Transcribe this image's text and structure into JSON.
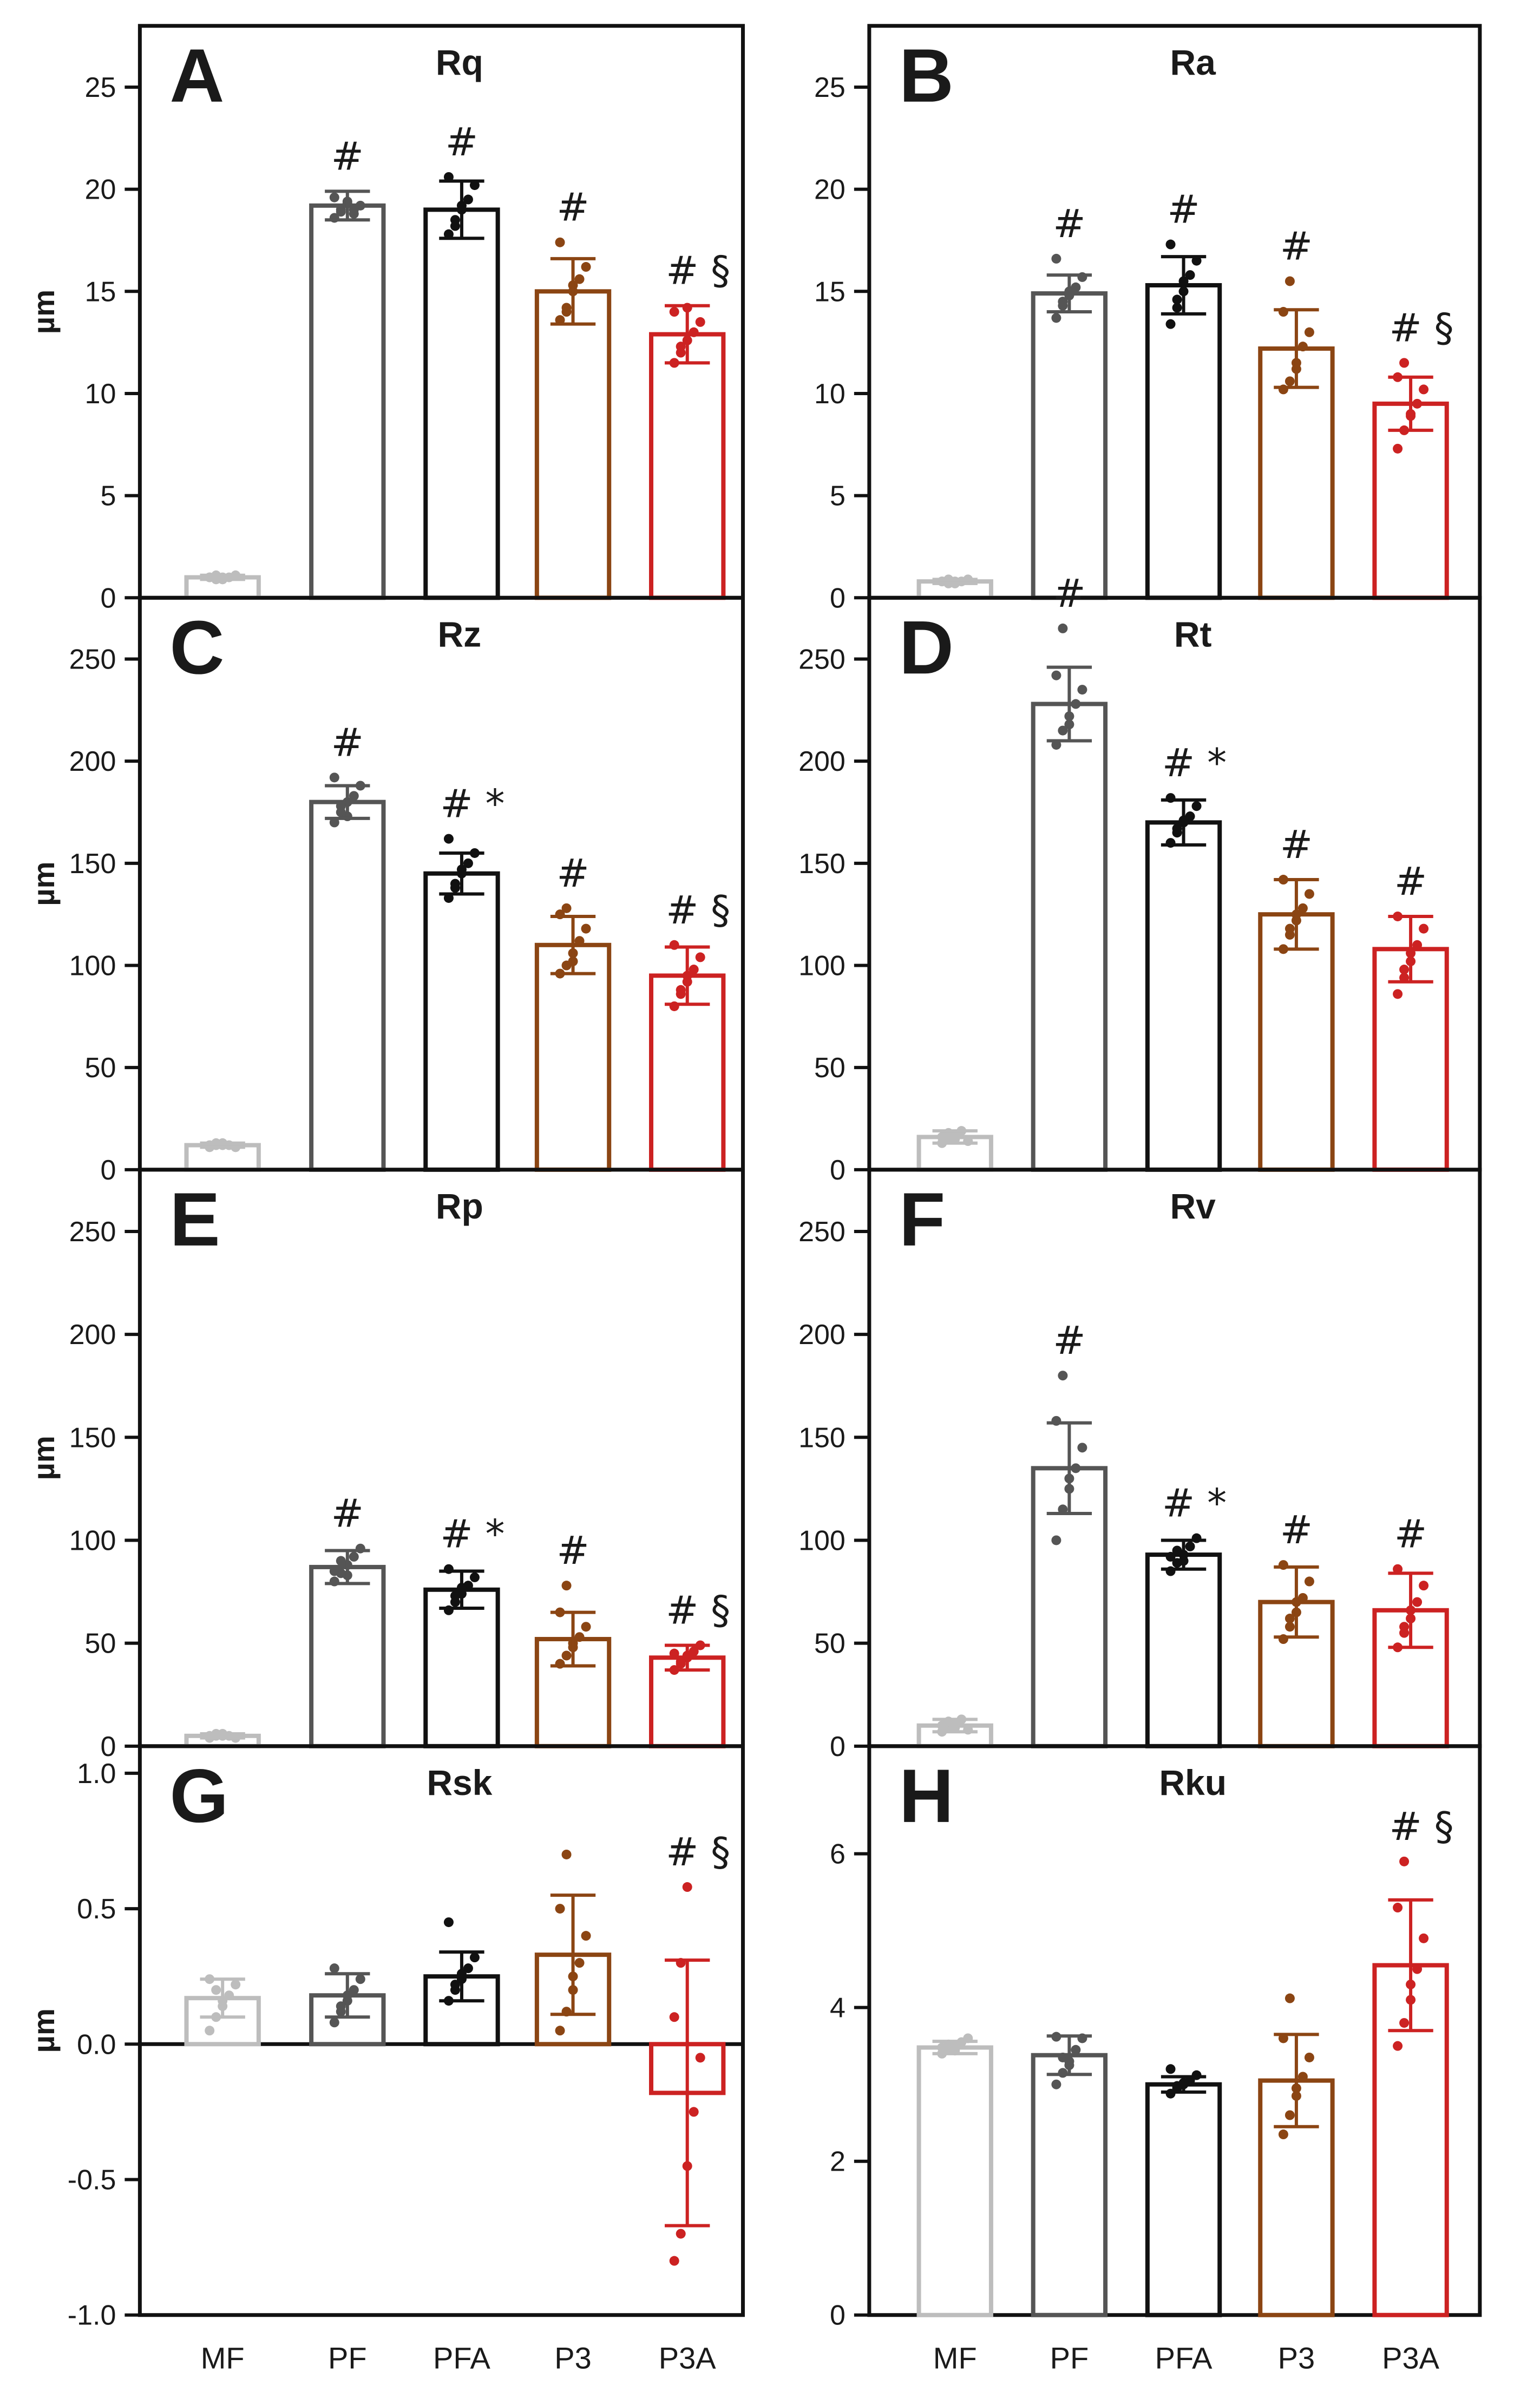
{
  "categories": [
    "MF",
    "PF",
    "PFA",
    "P3",
    "P3A"
  ],
  "colors": [
    "#bdbdbd",
    "#555555",
    "#111111",
    "#8b4513",
    "#cc2222"
  ],
  "chart_data": [
    {
      "type": "bar",
      "letter": "A",
      "title": "Rq",
      "ylabel": "µm",
      "ylim": [
        0,
        28
      ],
      "ticks": [
        0,
        5,
        10,
        15,
        20,
        25
      ],
      "categories": [
        "MF",
        "PF",
        "PFA",
        "P3",
        "P3A"
      ],
      "values": [
        1.0,
        19.2,
        19.0,
        15.0,
        12.9
      ],
      "errors": [
        0.1,
        0.7,
        1.4,
        1.6,
        1.4
      ],
      "points": [
        [
          1.0,
          1.1,
          0.9,
          1.0,
          1.1,
          1.0,
          0.9,
          1.0
        ],
        [
          18.6,
          19.0,
          19.4,
          18.8,
          19.2,
          19.6,
          18.9,
          19.3,
          19.0
        ],
        [
          17.8,
          18.5,
          19.0,
          19.5,
          20.2,
          20.6,
          18.2,
          19.2
        ],
        [
          13.6,
          14.2,
          15.0,
          15.6,
          16.2,
          17.4,
          14.0,
          15.3
        ],
        [
          11.5,
          12.0,
          12.6,
          13.0,
          13.5,
          14.0,
          12.3,
          14.2
        ]
      ],
      "annotations": [
        "",
        "#",
        "#",
        "#",
        "# §"
      ]
    },
    {
      "type": "bar",
      "letter": "B",
      "title": "Ra",
      "ylabel": "",
      "ylim": [
        0,
        28
      ],
      "ticks": [
        0,
        5,
        10,
        15,
        20,
        25
      ],
      "categories": [
        "MF",
        "PF",
        "PFA",
        "P3",
        "P3A"
      ],
      "values": [
        0.8,
        14.9,
        15.3,
        12.2,
        9.5
      ],
      "errors": [
        0.1,
        0.9,
        1.4,
        1.9,
        1.3
      ],
      "points": [
        [
          0.8,
          0.9,
          0.7,
          0.8,
          0.9,
          0.8,
          0.7,
          0.8
        ],
        [
          13.7,
          14.3,
          14.8,
          15.2,
          15.7,
          16.6,
          14.5,
          15.0
        ],
        [
          13.4,
          14.2,
          15.0,
          15.8,
          16.5,
          17.3,
          14.6,
          15.5
        ],
        [
          10.2,
          10.6,
          11.5,
          12.3,
          13.0,
          14.0,
          15.5,
          11.2
        ],
        [
          7.3,
          8.2,
          8.9,
          9.5,
          10.2,
          10.8,
          11.5,
          9.0
        ]
      ],
      "annotations": [
        "",
        "#",
        "#",
        "#",
        "# §"
      ]
    },
    {
      "type": "bar",
      "letter": "C",
      "title": "Rz",
      "ylabel": "µm",
      "ylim": [
        0,
        280
      ],
      "ticks": [
        0,
        50,
        100,
        150,
        200,
        250
      ],
      "categories": [
        "MF",
        "PF",
        "PFA",
        "P3",
        "P3A"
      ],
      "values": [
        12,
        180,
        145,
        110,
        95
      ],
      "errors": [
        1,
        8,
        10,
        14,
        14
      ],
      "points": [
        [
          11,
          12,
          13,
          12,
          11,
          12,
          13,
          12
        ],
        [
          170,
          175,
          180,
          183,
          188,
          192,
          178,
          173
        ],
        [
          133,
          140,
          145,
          150,
          155,
          162,
          138,
          147
        ],
        [
          96,
          100,
          106,
          112,
          118,
          125,
          128,
          102
        ],
        [
          80,
          86,
          92,
          98,
          104,
          110,
          88,
          95
        ]
      ],
      "annotations": [
        "",
        "#",
        "# *",
        "#",
        "# §"
      ]
    },
    {
      "type": "bar",
      "letter": "D",
      "title": "Rt",
      "ylabel": "",
      "ylim": [
        0,
        280
      ],
      "ticks": [
        0,
        50,
        100,
        150,
        200,
        250
      ],
      "categories": [
        "MF",
        "PF",
        "PFA",
        "P3",
        "P3A"
      ],
      "values": [
        16,
        228,
        170,
        125,
        108
      ],
      "errors": [
        3,
        18,
        11,
        17,
        16
      ],
      "points": [
        [
          13,
          15,
          17,
          19,
          14,
          16,
          18,
          15
        ],
        [
          208,
          215,
          222,
          228,
          235,
          242,
          265,
          218
        ],
        [
          160,
          165,
          170,
          173,
          178,
          182,
          167,
          171
        ],
        [
          108,
          115,
          122,
          128,
          135,
          142,
          118,
          125
        ],
        [
          86,
          94,
          102,
          110,
          118,
          124,
          98,
          106
        ]
      ],
      "annotations": [
        "",
        "#",
        "# *",
        "#",
        "#"
      ]
    },
    {
      "type": "bar",
      "letter": "E",
      "title": "Rp",
      "ylabel": "µm",
      "ylim": [
        0,
        280
      ],
      "ticks": [
        0,
        50,
        100,
        150,
        200,
        250
      ],
      "categories": [
        "MF",
        "PF",
        "PFA",
        "P3",
        "P3A"
      ],
      "values": [
        5,
        87,
        76,
        52,
        43
      ],
      "errors": [
        1,
        8,
        9,
        13,
        6
      ],
      "points": [
        [
          4,
          5,
          6,
          5,
          4,
          5,
          6,
          5
        ],
        [
          80,
          84,
          88,
          92,
          96,
          85,
          90,
          83
        ],
        [
          66,
          70,
          74,
          78,
          82,
          86,
          73,
          77
        ],
        [
          40,
          44,
          48,
          53,
          58,
          65,
          78,
          50
        ],
        [
          37,
          40,
          43,
          46,
          49,
          45,
          41,
          44
        ]
      ],
      "annotations": [
        "",
        "#",
        "# *",
        "#",
        "# §"
      ]
    },
    {
      "type": "bar",
      "letter": "F",
      "title": "Rv",
      "ylabel": "",
      "ylim": [
        0,
        280
      ],
      "ticks": [
        0,
        50,
        100,
        150,
        200,
        250
      ],
      "categories": [
        "MF",
        "PF",
        "PFA",
        "P3",
        "P3A"
      ],
      "values": [
        10,
        135,
        93,
        70,
        66
      ],
      "errors": [
        3,
        22,
        7,
        17,
        18
      ],
      "points": [
        [
          7,
          9,
          11,
          13,
          8,
          10,
          12,
          9
        ],
        [
          100,
          115,
          125,
          135,
          145,
          158,
          180,
          130
        ],
        [
          85,
          89,
          93,
          97,
          101,
          92,
          95,
          90
        ],
        [
          52,
          58,
          65,
          72,
          80,
          88,
          62,
          70
        ],
        [
          48,
          55,
          62,
          70,
          78,
          86,
          58,
          66
        ]
      ],
      "annotations": [
        "",
        "#",
        "# *",
        "#",
        "#"
      ]
    },
    {
      "type": "bar",
      "letter": "G",
      "title": "Rsk",
      "ylabel": "µm",
      "ylim": [
        -1.0,
        1.1
      ],
      "ticks": [
        -1.0,
        -0.5,
        0.0,
        0.5,
        1.0
      ],
      "tick_labels": [
        "-1.0",
        "-0.5",
        "0.0",
        "0.5",
        "1.0"
      ],
      "categories": [
        "MF",
        "PF",
        "PFA",
        "P3",
        "P3A"
      ],
      "values": [
        0.17,
        0.18,
        0.25,
        0.33,
        -0.18
      ],
      "errors": [
        0.07,
        0.08,
        0.09,
        0.22,
        0.49
      ],
      "points": [
        [
          0.05,
          0.1,
          0.14,
          0.18,
          0.22,
          0.24,
          0.2,
          0.16
        ],
        [
          0.08,
          0.12,
          0.16,
          0.2,
          0.24,
          0.28,
          0.14,
          0.18
        ],
        [
          0.16,
          0.2,
          0.24,
          0.28,
          0.32,
          0.45,
          0.22,
          0.26
        ],
        [
          0.05,
          0.12,
          0.2,
          0.3,
          0.4,
          0.5,
          0.7,
          0.25
        ],
        [
          -0.8,
          -0.7,
          -0.45,
          -0.25,
          -0.05,
          0.1,
          0.3,
          0.58
        ]
      ],
      "annotations": [
        "",
        "",
        "",
        "",
        "# §"
      ]
    },
    {
      "type": "bar",
      "letter": "H",
      "title": "Rku",
      "ylabel": "",
      "ylim": [
        0,
        7.4
      ],
      "ticks": [
        0,
        2,
        4,
        6
      ],
      "categories": [
        "MF",
        "PF",
        "PFA",
        "P3",
        "P3A"
      ],
      "values": [
        3.48,
        3.38,
        3.0,
        3.05,
        4.55
      ],
      "errors": [
        0.08,
        0.25,
        0.1,
        0.6,
        0.85
      ],
      "points": [
        [
          3.4,
          3.45,
          3.5,
          3.55,
          3.6,
          3.48,
          3.52,
          3.44
        ],
        [
          3.0,
          3.15,
          3.3,
          3.45,
          3.6,
          3.62,
          3.35,
          3.25
        ],
        [
          2.88,
          2.95,
          3.0,
          3.05,
          3.12,
          3.2,
          2.98,
          3.02
        ],
        [
          2.35,
          2.6,
          2.85,
          3.1,
          3.35,
          3.6,
          4.12,
          2.95
        ],
        [
          3.5,
          3.8,
          4.1,
          4.5,
          4.9,
          5.3,
          5.9,
          4.3
        ]
      ],
      "annotations": [
        "",
        "",
        "",
        "",
        "# §"
      ]
    }
  ]
}
